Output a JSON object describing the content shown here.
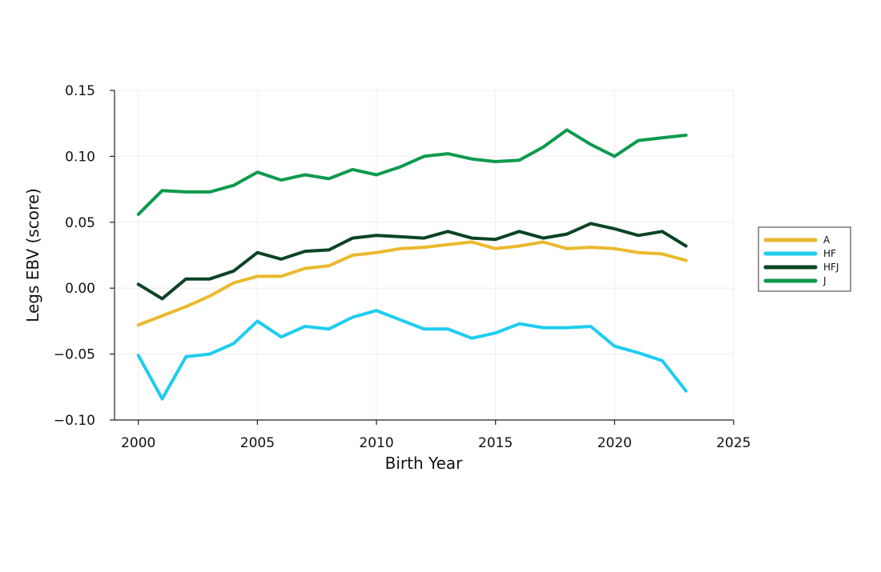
{
  "chart_data": {
    "type": "line",
    "title": "",
    "xlabel": "Birth Year",
    "ylabel": "Legs EBV (score)",
    "xlim": [
      1999,
      2025
    ],
    "ylim": [
      -0.1,
      0.15
    ],
    "xticks": [
      2000,
      2005,
      2010,
      2015,
      2020,
      2025
    ],
    "xtick_labels": [
      "2000",
      "2005",
      "2010",
      "2015",
      "2020",
      "2025"
    ],
    "yticks": [
      -0.1,
      -0.05,
      0.0,
      0.05,
      0.1,
      0.15
    ],
    "ytick_labels": [
      "−0.10",
      "−0.05",
      "0.00",
      "0.05",
      "0.10",
      "0.15"
    ],
    "grid": true,
    "legend_position": "right",
    "x": [
      2000,
      2001,
      2002,
      2003,
      2004,
      2005,
      2006,
      2007,
      2008,
      2009,
      2010,
      2011,
      2012,
      2013,
      2014,
      2015,
      2016,
      2017,
      2018,
      2019,
      2020,
      2021,
      2022,
      2023
    ],
    "series": [
      {
        "name": "A",
        "color": "#EBB92D",
        "values": [
          -0.028,
          -0.021,
          -0.014,
          -0.006,
          0.004,
          0.009,
          0.009,
          0.015,
          0.017,
          0.025,
          0.027,
          0.03,
          0.031,
          0.033,
          0.035,
          0.03,
          0.032,
          0.035,
          0.03,
          0.031,
          0.03,
          0.027,
          0.026,
          0.021
        ]
      },
      {
        "name": "HF",
        "color": "#1ECDF0",
        "values": [
          -0.051,
          -0.084,
          -0.052,
          -0.05,
          -0.042,
          -0.025,
          -0.037,
          -0.029,
          -0.031,
          -0.022,
          -0.017,
          -0.024,
          -0.031,
          -0.031,
          -0.038,
          -0.034,
          -0.027,
          -0.03,
          -0.03,
          -0.029,
          -0.044,
          -0.049,
          -0.055,
          -0.078
        ]
      },
      {
        "name": "HFJ",
        "color": "#0B4524",
        "values": [
          0.003,
          -0.008,
          0.007,
          0.007,
          0.013,
          0.027,
          0.022,
          0.028,
          0.029,
          0.038,
          0.04,
          0.039,
          0.038,
          0.043,
          0.038,
          0.037,
          0.043,
          0.038,
          0.041,
          0.049,
          0.045,
          0.04,
          0.043,
          0.032
        ]
      },
      {
        "name": "J",
        "color": "#0E9A4E",
        "values": [
          0.056,
          0.074,
          0.073,
          0.073,
          0.078,
          0.088,
          0.082,
          0.086,
          0.083,
          0.09,
          0.086,
          0.092,
          0.1,
          0.102,
          0.098,
          0.096,
          0.097,
          0.107,
          0.12,
          0.109,
          0.1,
          0.112,
          0.114,
          0.116
        ]
      }
    ]
  }
}
